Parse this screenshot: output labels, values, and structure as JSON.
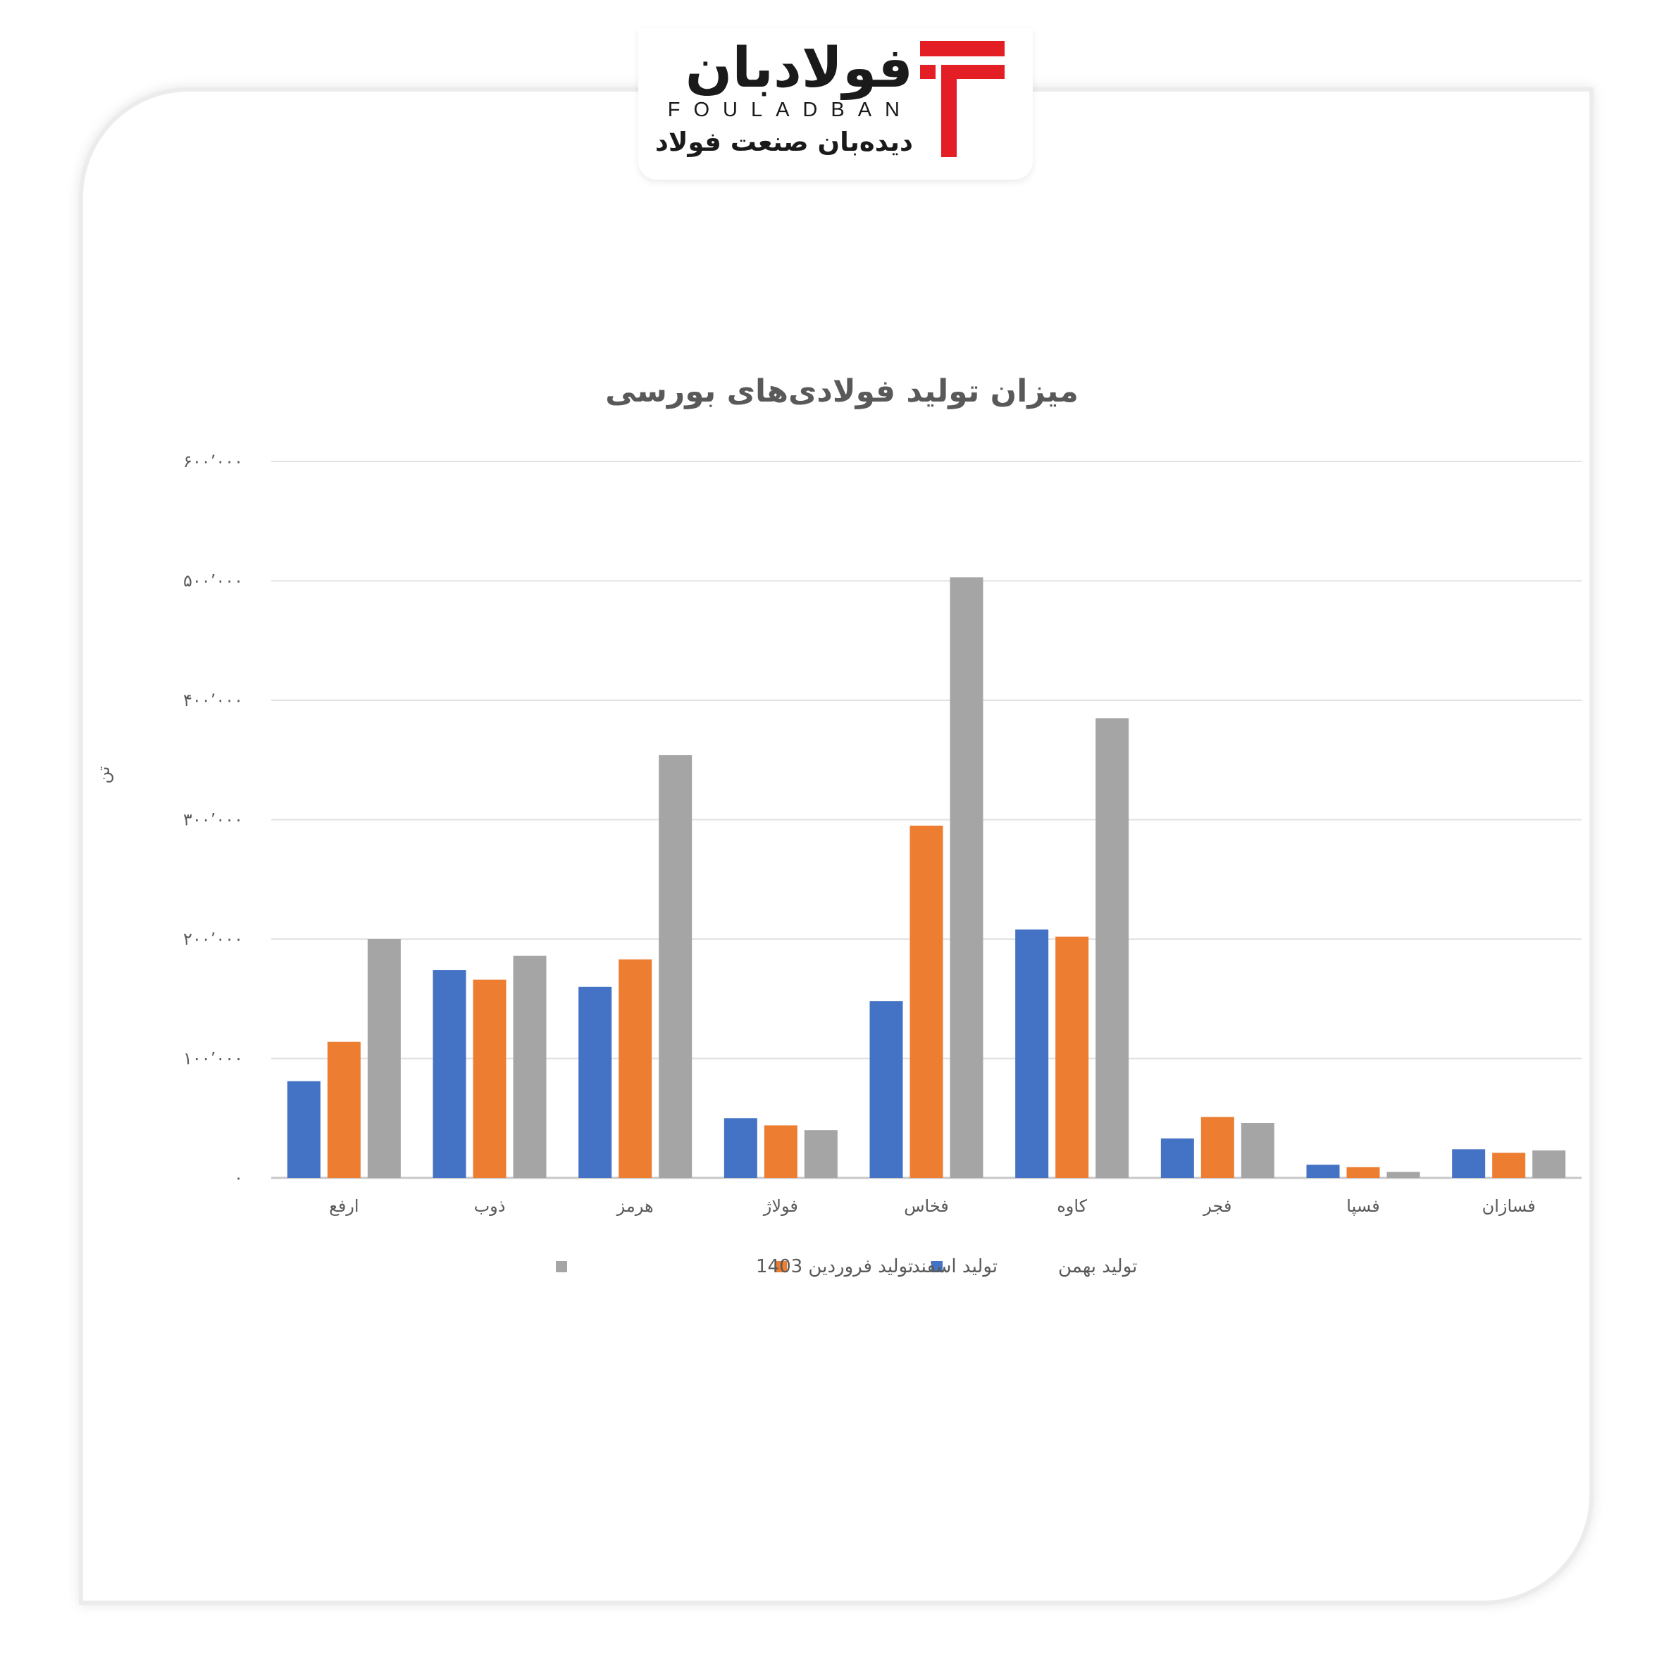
{
  "logo": {
    "name": "فولادبان",
    "latin": "FOULADBAN",
    "tagline": "دیده‌بان صنعت فولاد",
    "mark_color": "#e31e24"
  },
  "chart_data": {
    "type": "bar",
    "title": "میزان تولید فولادی‌های بورسی",
    "ylabel": "تن",
    "ylim": [
      0,
      600000
    ],
    "ytick_values": [
      0,
      100000,
      200000,
      300000,
      400000,
      500000,
      600000
    ],
    "ytick_labels": [
      "۰",
      "۱۰۰٬۰۰۰",
      "۲۰۰٬۰۰۰",
      "۳۰۰٬۰۰۰",
      "۴۰۰٬۰۰۰",
      "۵۰۰٬۰۰۰",
      "۶۰۰٬۰۰۰"
    ],
    "grid": true,
    "legend_position": "bottom",
    "categories": [
      "ارفع",
      "ذوب",
      "هرمز",
      "فولاژ",
      "فخاس",
      "کاوه",
      "فجر",
      "فسپا",
      "فسازان"
    ],
    "series": [
      {
        "name": "تولید بهمن",
        "color": "#4472c4",
        "values": [
          81000,
          174000,
          160000,
          50000,
          148000,
          208000,
          33000,
          11000,
          24000
        ]
      },
      {
        "name": "تولید اسفند",
        "color": "#ed7d31",
        "values": [
          114000,
          166000,
          183000,
          44000,
          295000,
          202000,
          51000,
          9000,
          21000
        ]
      },
      {
        "name": "تولید فروردین 1403",
        "color": "#a5a5a5",
        "values": [
          200000,
          186000,
          354000,
          40000,
          503000,
          385000,
          46000,
          5000,
          23000
        ]
      }
    ]
  }
}
